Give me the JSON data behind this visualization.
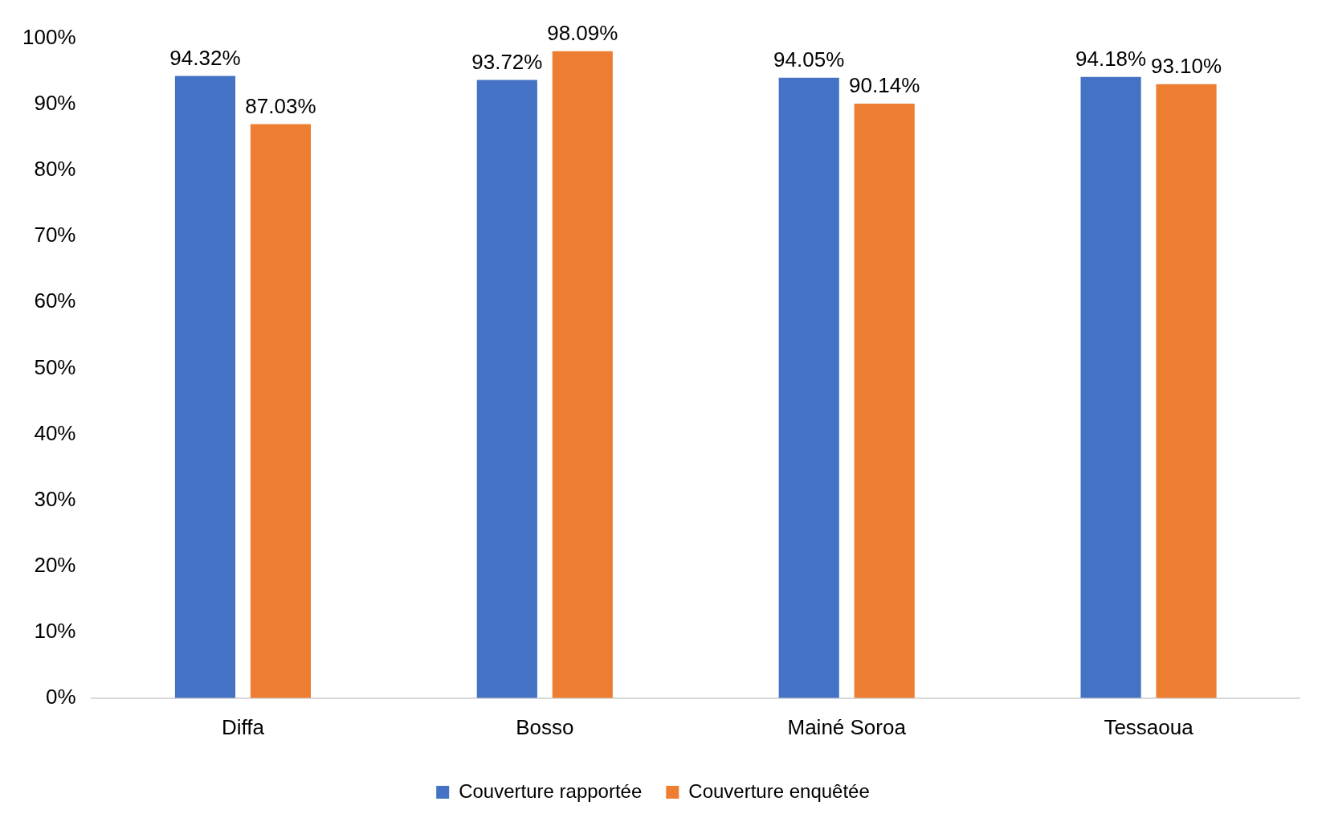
{
  "chart_data": {
    "type": "bar",
    "categories": [
      "Diffa",
      "Bosso",
      "Mainé Soroa",
      "Tessaoua"
    ],
    "series": [
      {
        "name": "Couverture rapportée",
        "color": "#4472c4",
        "values": [
          94.32,
          93.72,
          94.05,
          94.18
        ],
        "value_labels": [
          "94.32%",
          "93.72%",
          "94.05%",
          "94.18%"
        ]
      },
      {
        "name": "Couverture enquêtée",
        "color": "#ed7d31",
        "values": [
          87.03,
          98.09,
          90.14,
          93.1
        ],
        "value_labels": [
          "87.03%",
          "98.09%",
          "90.14%",
          "93.10%"
        ]
      }
    ],
    "ylim": [
      0,
      100
    ],
    "yticks": [
      {
        "value": 0,
        "label": "0%"
      },
      {
        "value": 10,
        "label": "10%"
      },
      {
        "value": 20,
        "label": "20%"
      },
      {
        "value": 30,
        "label": "30%"
      },
      {
        "value": 40,
        "label": "40%"
      },
      {
        "value": 50,
        "label": "50%"
      },
      {
        "value": 60,
        "label": "60%"
      },
      {
        "value": 70,
        "label": "70%"
      },
      {
        "value": 80,
        "label": "80%"
      },
      {
        "value": 90,
        "label": "90%"
      },
      {
        "value": 100,
        "label": "100%"
      }
    ],
    "grid": false,
    "legend": "bottom"
  }
}
